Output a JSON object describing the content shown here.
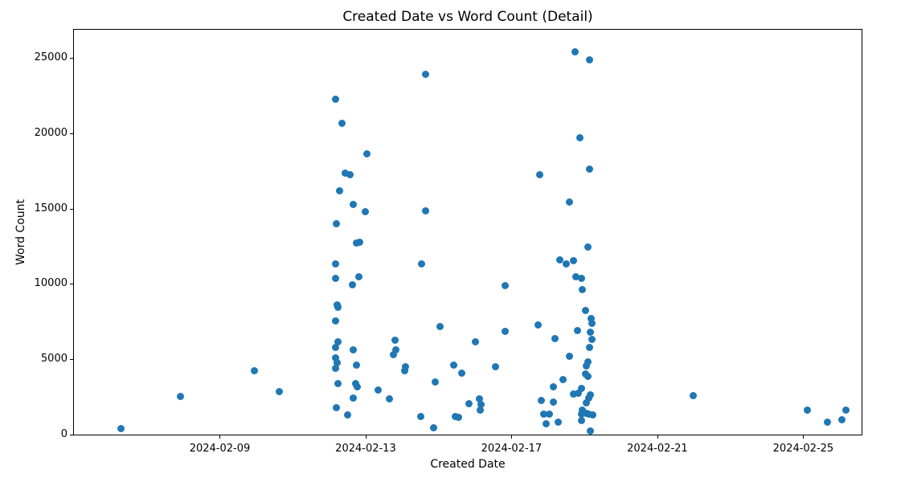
{
  "title": "Created Date vs Word Count (Detail)",
  "chart_data": {
    "type": "scatter",
    "title": "Created Date vs Word Count (Detail)",
    "xlabel": "Created Date",
    "ylabel": "Word Count",
    "marker_color": "#1f77b4",
    "grid": false,
    "legend": null,
    "x_axis": {
      "unit": "days since 2024-02-05 00:00",
      "range": [
        0,
        21.6
      ],
      "ticks": [
        {
          "day": 4,
          "label": "2024-02-09"
        },
        {
          "day": 8,
          "label": "2024-02-13"
        },
        {
          "day": 12,
          "label": "2024-02-17"
        },
        {
          "day": 16,
          "label": "2024-02-21"
        },
        {
          "day": 20,
          "label": "2024-02-25"
        }
      ]
    },
    "y_axis": {
      "range": [
        0,
        26860
      ],
      "ticks": [
        {
          "value": 0,
          "label": "0"
        },
        {
          "value": 5000,
          "label": "5000"
        },
        {
          "value": 10000,
          "label": "10000"
        },
        {
          "value": 15000,
          "label": "15000"
        },
        {
          "value": 20000,
          "label": "20000"
        },
        {
          "value": 25000,
          "label": "25000"
        }
      ]
    },
    "points": [
      [
        1.28,
        410
      ],
      [
        2.93,
        2520
      ],
      [
        4.95,
        4240
      ],
      [
        5.63,
        2860
      ],
      [
        7.18,
        22270
      ],
      [
        7.36,
        20660
      ],
      [
        7.29,
        16190
      ],
      [
        7.19,
        13970
      ],
      [
        7.18,
        11350
      ],
      [
        7.18,
        10390
      ],
      [
        7.22,
        8600
      ],
      [
        7.23,
        8440
      ],
      [
        7.18,
        7540
      ],
      [
        7.23,
        6170
      ],
      [
        7.18,
        5780
      ],
      [
        7.18,
        5070
      ],
      [
        7.22,
        4750
      ],
      [
        7.18,
        4400
      ],
      [
        7.24,
        3370
      ],
      [
        7.2,
        1780
      ],
      [
        7.43,
        17340
      ],
      [
        7.57,
        17220
      ],
      [
        7.66,
        15280
      ],
      [
        7.75,
        12700
      ],
      [
        7.84,
        12770
      ],
      [
        7.81,
        10460
      ],
      [
        7.64,
        9960
      ],
      [
        7.67,
        5600
      ],
      [
        7.75,
        4610
      ],
      [
        7.73,
        3380
      ],
      [
        7.78,
        3170
      ],
      [
        7.65,
        2450
      ],
      [
        7.5,
        1280
      ],
      [
        8.03,
        18650
      ],
      [
        7.99,
        14770
      ],
      [
        8.35,
        2940
      ],
      [
        8.66,
        2360
      ],
      [
        8.8,
        6260
      ],
      [
        8.83,
        5640
      ],
      [
        8.77,
        5280
      ],
      [
        9.1,
        4480
      ],
      [
        9.07,
        4260
      ],
      [
        9.51,
        1210
      ],
      [
        9.54,
        11350
      ],
      [
        9.64,
        23900
      ],
      [
        9.64,
        14860
      ],
      [
        9.87,
        460
      ],
      [
        9.91,
        3510
      ],
      [
        10.04,
        7180
      ],
      [
        10.42,
        4610
      ],
      [
        10.46,
        1210
      ],
      [
        10.55,
        1170
      ],
      [
        10.63,
        4100
      ],
      [
        10.83,
        2060
      ],
      [
        11.01,
        6170
      ],
      [
        11.12,
        2360
      ],
      [
        11.16,
        2010
      ],
      [
        11.14,
        1600
      ],
      [
        11.56,
        4480
      ],
      [
        11.82,
        9860
      ],
      [
        11.82,
        6850
      ],
      [
        12.77,
        17230
      ],
      [
        12.73,
        7290
      ],
      [
        12.81,
        2270
      ],
      [
        12.88,
        1380
      ],
      [
        12.94,
        730
      ],
      [
        13.04,
        1350
      ],
      [
        13.14,
        3150
      ],
      [
        13.14,
        2140
      ],
      [
        13.19,
        6350
      ],
      [
        13.28,
        850
      ],
      [
        13.32,
        11580
      ],
      [
        13.42,
        3630
      ],
      [
        13.5,
        11310
      ],
      [
        13.59,
        15430
      ],
      [
        13.59,
        5200
      ],
      [
        13.69,
        2680
      ],
      [
        13.7,
        11530
      ],
      [
        13.75,
        25370
      ],
      [
        13.76,
        10480
      ],
      [
        13.81,
        6880
      ],
      [
        13.83,
        2750
      ],
      [
        13.87,
        19680
      ],
      [
        13.91,
        10340
      ],
      [
        13.91,
        940
      ],
      [
        13.92,
        3070
      ],
      [
        13.92,
        1380
      ],
      [
        13.93,
        9610
      ],
      [
        13.95,
        1650
      ],
      [
        14.02,
        8260
      ],
      [
        14.02,
        4040
      ],
      [
        14.04,
        2090
      ],
      [
        14.05,
        4570
      ],
      [
        14.05,
        1420
      ],
      [
        14.1,
        12460
      ],
      [
        14.1,
        4840
      ],
      [
        14.1,
        3870
      ],
      [
        14.12,
        2450
      ],
      [
        14.12,
        1380
      ],
      [
        14.14,
        24840
      ],
      [
        14.14,
        17590
      ],
      [
        14.14,
        5760
      ],
      [
        14.16,
        6790
      ],
      [
        14.16,
        2620
      ],
      [
        14.16,
        230
      ],
      [
        14.19,
        7710
      ],
      [
        14.2,
        7380
      ],
      [
        14.2,
        6290
      ],
      [
        14.22,
        1290
      ],
      [
        16.99,
        2570
      ],
      [
        20.11,
        1630
      ],
      [
        20.66,
        840
      ],
      [
        21.07,
        970
      ],
      [
        21.18,
        1650
      ]
    ]
  }
}
